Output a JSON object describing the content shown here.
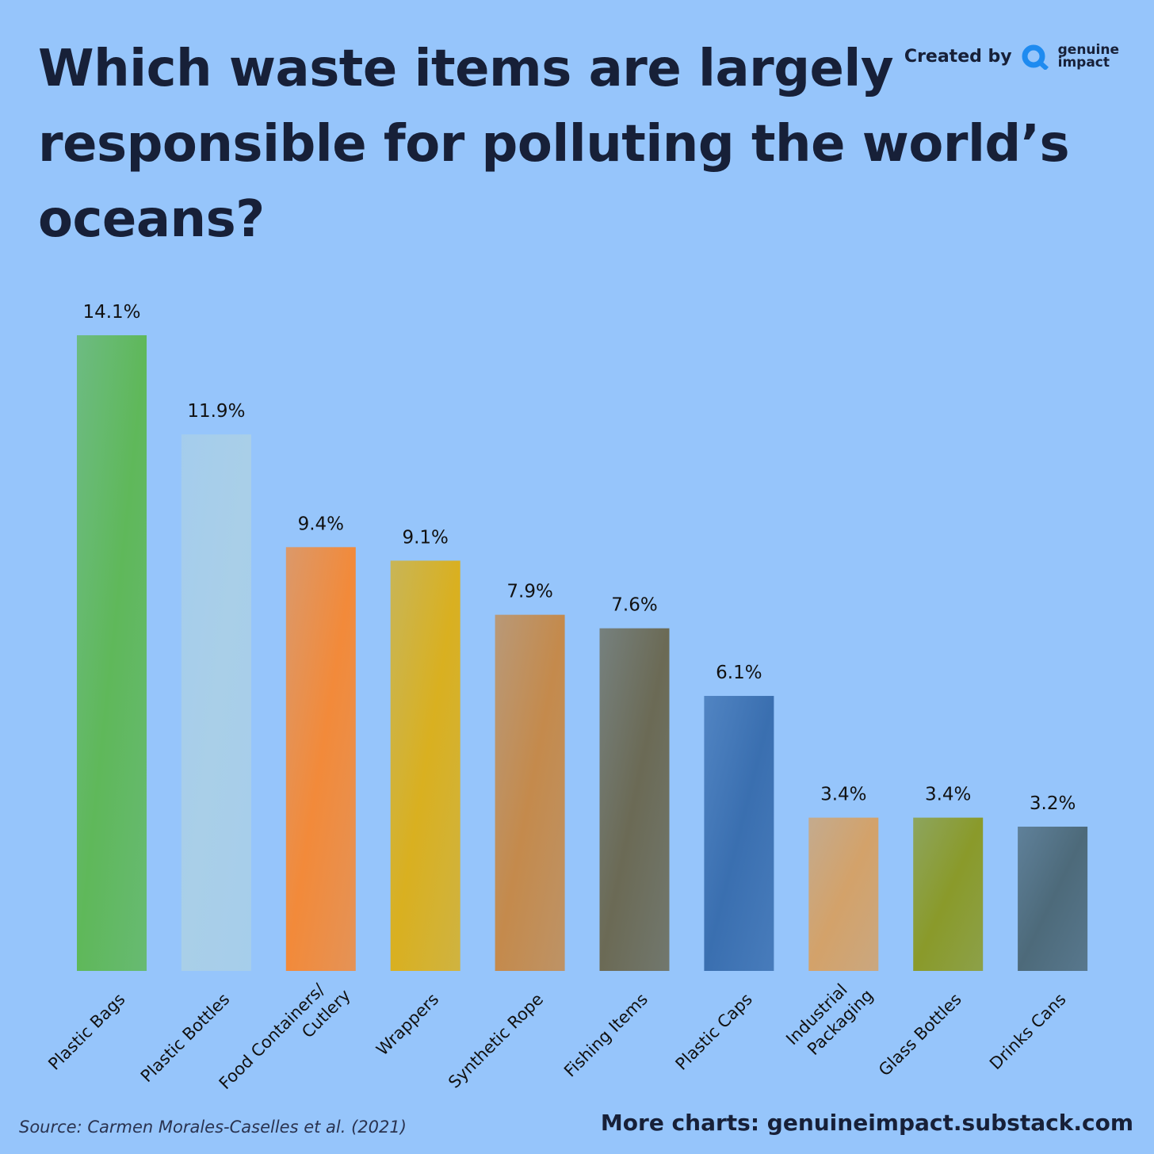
{
  "chart_data": {
    "type": "bar",
    "title": [
      "Which waste items are largely",
      "responsible for polluting the world’s",
      "oceans?"
    ],
    "credit": {
      "label": "Created by",
      "brand": [
        "genuine",
        "impact"
      ]
    },
    "source": "Source: Carmen Morales-Caselles et al. (2021)",
    "footer": "More charts: genuineimpact.substack.com",
    "categories": [
      "Plastic Bags",
      "Plastic Bottles",
      [
        "Food Containers/",
        "Cutlery"
      ],
      "Wrappers",
      "Synthetic Rope",
      "Fishing Items",
      "Plastic Caps",
      [
        "Industrial",
        "Packaging"
      ],
      "Glass Bottles",
      "Drinks Cans"
    ],
    "values": [
      14.1,
      11.9,
      9.4,
      9.1,
      7.9,
      7.6,
      6.1,
      3.4,
      3.4,
      3.2
    ],
    "value_labels": [
      "14.1%",
      "11.9%",
      "9.4%",
      "9.1%",
      "7.9%",
      "7.6%",
      "6.1%",
      "3.4%",
      "3.4%",
      "3.2%"
    ],
    "colors": [
      "#5fb85a",
      "#a9cfe8",
      "#f28a3a",
      "#d9b020",
      "#c48a4c",
      "#6b6a55",
      "#3a6fb0",
      "#d3a26a",
      "#8a9a2a",
      "#4d6a7a"
    ]
  }
}
